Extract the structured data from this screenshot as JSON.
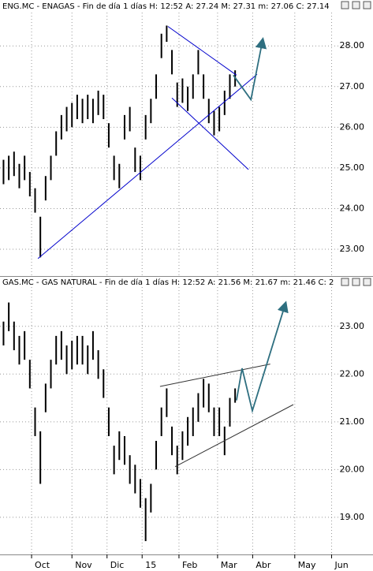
{
  "chart_data": [
    {
      "type": "hilo",
      "title": "ENG.MC - ENAGAS - Fin de día 1 días  H: 12:52  A: 27.24  M: 27.31  m: 27.06  C: 27.14",
      "color": "#000000",
      "x": [
        2,
        5,
        8,
        11,
        14,
        17,
        20,
        23,
        26,
        29,
        32,
        35,
        38,
        41,
        44,
        47,
        50,
        53,
        56,
        59,
        62,
        65,
        68,
        71,
        74,
        77,
        80,
        83,
        86,
        89,
        92,
        95,
        98,
        101,
        104,
        107,
        110,
        113,
        116,
        119,
        122,
        125,
        128,
        131,
        134
      ],
      "high": [
        25.2,
        25.3,
        25.4,
        25.1,
        25.3,
        24.9,
        24.5,
        23.8,
        24.8,
        25.3,
        25.9,
        26.3,
        26.5,
        26.6,
        26.8,
        26.7,
        26.8,
        26.7,
        26.9,
        26.8,
        26.1,
        25.3,
        25.1,
        26.3,
        26.5,
        25.5,
        25.3,
        26.3,
        26.7,
        27.3,
        28.3,
        28.5,
        27.9,
        27.1,
        27.2,
        27.0,
        27.3,
        27.9,
        27.3,
        26.7,
        26.4,
        26.5,
        26.9,
        27.3,
        27.4
      ],
      "low": [
        24.6,
        24.7,
        24.8,
        24.5,
        24.7,
        24.3,
        23.9,
        22.8,
        24.2,
        24.7,
        25.3,
        25.7,
        25.9,
        26.0,
        26.2,
        26.1,
        26.2,
        26.1,
        26.3,
        26.2,
        25.5,
        24.7,
        24.5,
        25.7,
        25.9,
        24.9,
        24.7,
        25.7,
        26.1,
        26.7,
        27.7,
        28.1,
        27.3,
        26.5,
        26.6,
        26.4,
        26.7,
        27.3,
        26.7,
        26.1,
        25.8,
        25.9,
        26.3,
        26.7,
        27.0
      ],
      "lines": [
        {
          "color": "#0000cc",
          "x": [
            21.6,
            146.5
          ],
          "y": [
            22.77,
            27.3
          ]
        },
        {
          "color": "#0000cc",
          "x": [
            95.7,
            134.8
          ],
          "y": [
            28.48,
            27.28
          ]
        },
        {
          "color": "#0000cc",
          "x": [
            98,
            141.6
          ],
          "y": [
            26.72,
            24.96
          ]
        },
        {
          "color": "#2e6f80",
          "arrow": true,
          "x": [
            133,
            143,
            149.7
          ],
          "y": [
            27.28,
            26.68,
            28.15
          ]
        }
      ],
      "xlim": [
        0,
        200
      ],
      "ylim": [
        22.38,
        28.78
      ],
      "yticks": [
        {
          "value": 23,
          "label": "23.00"
        },
        {
          "value": 24,
          "label": "24.00"
        },
        {
          "value": 25,
          "label": "25.00"
        },
        {
          "value": 26,
          "label": "26.00"
        },
        {
          "value": 27,
          "label": "27.00"
        },
        {
          "value": 28,
          "label": "28.00"
        }
      ],
      "grid": true
    },
    {
      "type": "hilo",
      "title": "GAS.MC - GAS NATURAL - Fin de día 1 días  H: 12:52  A: 21.56  M: 21.67  m: 21.46  C: 2",
      "color": "#000000",
      "x": [
        2,
        5,
        8,
        11,
        14,
        17,
        20,
        23,
        26,
        29,
        32,
        35,
        38,
        41,
        44,
        47,
        50,
        53,
        56,
        59,
        62,
        65,
        68,
        71,
        74,
        77,
        80,
        83,
        86,
        89,
        92,
        95,
        98,
        101,
        104,
        107,
        110,
        113,
        116,
        119,
        122,
        125,
        128,
        131,
        134
      ],
      "high": [
        23.1,
        23.5,
        23.1,
        22.8,
        22.9,
        22.3,
        21.3,
        20.8,
        21.8,
        22.3,
        22.8,
        22.9,
        22.6,
        22.7,
        22.8,
        22.8,
        22.6,
        22.9,
        22.5,
        22.1,
        21.3,
        20.5,
        20.8,
        20.7,
        20.3,
        20.1,
        19.8,
        19.4,
        19.7,
        20.6,
        21.3,
        21.7,
        20.9,
        20.5,
        20.8,
        21.1,
        21.3,
        21.6,
        21.9,
        21.8,
        21.3,
        21.3,
        20.9,
        21.5,
        21.7
      ],
      "low": [
        22.6,
        22.9,
        22.5,
        22.2,
        22.3,
        21.7,
        20.7,
        19.7,
        21.2,
        21.7,
        22.2,
        22.3,
        22.0,
        22.1,
        22.2,
        22.2,
        22.0,
        22.3,
        21.9,
        21.5,
        20.7,
        19.9,
        20.2,
        20.1,
        19.7,
        19.5,
        19.2,
        18.5,
        19.1,
        20.0,
        20.7,
        21.1,
        20.3,
        19.9,
        20.2,
        20.5,
        20.7,
        21.0,
        21.3,
        21.2,
        20.7,
        20.7,
        20.3,
        20.9,
        21.4
      ],
      "lines": [
        {
          "color": "#333333",
          "x": [
            91.2,
            154
          ],
          "y": [
            21.74,
            22.21
          ]
        },
        {
          "color": "#333333",
          "x": [
            99.8,
            167.2
          ],
          "y": [
            20.06,
            21.36
          ]
        },
        {
          "color": "#2e6f80",
          "arrow": true,
          "x": [
            134.8,
            138,
            143.8,
            162.7
          ],
          "y": [
            21.45,
            22.12,
            21.23,
            23.48
          ]
        }
      ],
      "xlim": [
        0,
        200
      ],
      "ylim": [
        18.27,
        23.79
      ],
      "yticks": [
        {
          "value": 19,
          "label": "19.00"
        },
        {
          "value": 20,
          "label": "20.00"
        },
        {
          "value": 21,
          "label": "21.00"
        },
        {
          "value": 22,
          "label": "22.00"
        },
        {
          "value": 23,
          "label": "23.00"
        }
      ],
      "xticks": [
        {
          "value": 18,
          "label": "Oct"
        },
        {
          "value": 41,
          "label": "Nov"
        },
        {
          "value": 61,
          "label": "Dic"
        },
        {
          "value": 81,
          "label": "15"
        },
        {
          "value": 102,
          "label": "Feb"
        },
        {
          "value": 124,
          "label": "Mar"
        },
        {
          "value": 144,
          "label": "Abr"
        },
        {
          "value": 168,
          "label": "May"
        },
        {
          "value": 189,
          "label": "Jun"
        }
      ],
      "grid": true
    }
  ]
}
